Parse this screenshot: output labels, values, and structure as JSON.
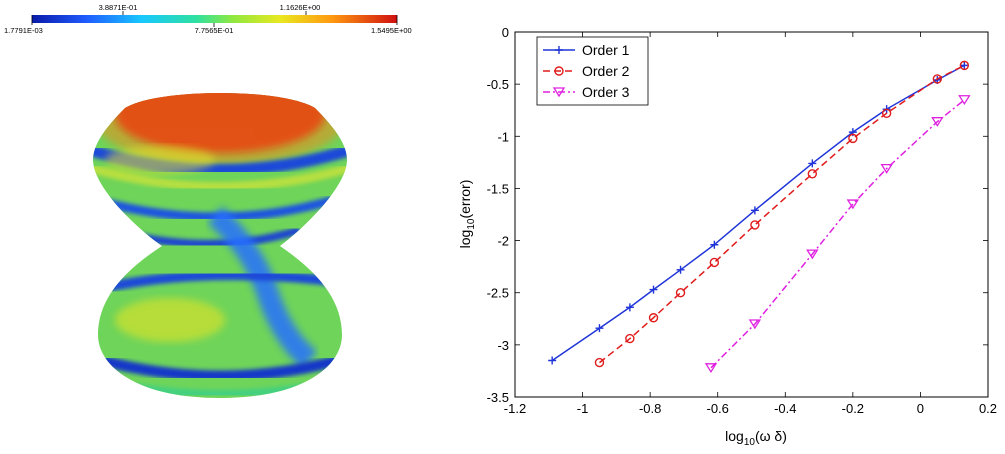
{
  "colorbar": {
    "top_labels": [
      "3.8871E-01",
      "1.1626E+00"
    ],
    "bottom_labels": [
      "1.7791E-03",
      "7.7565E-01",
      "1.5495E+00"
    ],
    "min": 0.0017791,
    "max": 1.5495
  },
  "colors": {
    "order1": "#1f35d8",
    "order2": "#e01b1b",
    "order3": "#e020e0"
  },
  "chart_data": {
    "type": "line",
    "xlabel_base": "log",
    "xlabel_sub": "10",
    "xlabel_arg": "(ω δ)",
    "ylabel_base": "log",
    "ylabel_sub": "10",
    "ylabel_arg": "(error)",
    "xlim": [
      -1.2,
      0.2
    ],
    "ylim": [
      -3.5,
      0
    ],
    "xticks": [
      -1.2,
      -1,
      -0.8,
      -0.6,
      -0.4,
      -0.2,
      0,
      0.2
    ],
    "xtick_labels": [
      "-1.2",
      "-1",
      "-0.8",
      "-0.6",
      "-0.4",
      "-0.2",
      "0",
      "0.2"
    ],
    "yticks": [
      -3.5,
      -3,
      -2.5,
      -2,
      -1.5,
      -1,
      -0.5,
      0
    ],
    "ytick_labels": [
      "-3.5",
      "-3",
      "-2.5",
      "-2",
      "-1.5",
      "-1",
      "-0.5",
      "0"
    ],
    "grid": false,
    "legend_position": "top-left",
    "series": [
      {
        "name": "Order 1",
        "line": "solid",
        "marker": "plus",
        "points": [
          [
            -1.09,
            -3.15
          ],
          [
            -0.95,
            -2.84
          ],
          [
            -0.86,
            -2.64
          ],
          [
            -0.79,
            -2.47
          ],
          [
            -0.71,
            -2.28
          ],
          [
            -0.61,
            -2.04
          ],
          [
            -0.49,
            -1.71
          ],
          [
            -0.32,
            -1.26
          ],
          [
            -0.2,
            -0.96
          ],
          [
            -0.1,
            -0.74
          ],
          [
            0.05,
            -0.46
          ],
          [
            0.13,
            -0.32
          ]
        ]
      },
      {
        "name": "Order 2",
        "line": "dashed",
        "marker": "circle",
        "points": [
          [
            -0.95,
            -3.17
          ],
          [
            -0.86,
            -2.94
          ],
          [
            -0.79,
            -2.74
          ],
          [
            -0.71,
            -2.5
          ],
          [
            -0.61,
            -2.21
          ],
          [
            -0.49,
            -1.85
          ],
          [
            -0.32,
            -1.36
          ],
          [
            -0.2,
            -1.02
          ],
          [
            -0.1,
            -0.78
          ],
          [
            0.05,
            -0.45
          ],
          [
            0.13,
            -0.32
          ]
        ]
      },
      {
        "name": "Order 3",
        "line": "dashdot",
        "marker": "triangle-down",
        "points": [
          [
            -0.62,
            -3.22
          ],
          [
            -0.49,
            -2.8
          ],
          [
            -0.32,
            -2.13
          ],
          [
            -0.2,
            -1.65
          ],
          [
            -0.1,
            -1.31
          ],
          [
            0.05,
            -0.86
          ],
          [
            0.13,
            -0.65
          ]
        ]
      }
    ]
  }
}
